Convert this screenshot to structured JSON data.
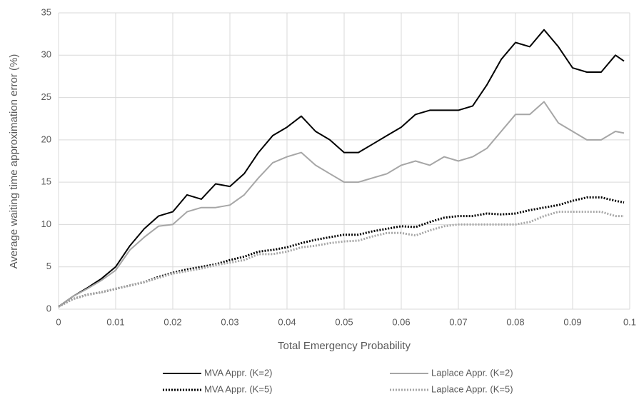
{
  "chart_data": {
    "type": "line",
    "x_label": "Total Emergency Probability",
    "y_label": "Average waiting time approximation error (%)",
    "x": [
      0,
      0.0025,
      0.005,
      0.0075,
      0.01,
      0.0125,
      0.015,
      0.0175,
      0.02,
      0.0225,
      0.025,
      0.0275,
      0.03,
      0.0325,
      0.035,
      0.0375,
      0.04,
      0.0425,
      0.045,
      0.0475,
      0.05,
      0.0525,
      0.055,
      0.0575,
      0.06,
      0.0625,
      0.065,
      0.0675,
      0.07,
      0.0725,
      0.075,
      0.0775,
      0.08,
      0.0825,
      0.085,
      0.0875,
      0.09,
      0.0925,
      0.095,
      0.0975,
      0.099
    ],
    "series": [
      {
        "name": "MVA Appr. (K=2)",
        "color": "#000000",
        "dash": "solid",
        "values": [
          0.3,
          1.5,
          2.5,
          3.6,
          5,
          7.5,
          9.5,
          11,
          11.5,
          13.5,
          13,
          14.8,
          14.5,
          16,
          18.5,
          20.5,
          21.5,
          22.8,
          21,
          20,
          18.5,
          18.5,
          19.5,
          20.5,
          21.5,
          23,
          23.5,
          23.5,
          23.5,
          24,
          26.5,
          29.5,
          31.5,
          31,
          33,
          31,
          28.5,
          28,
          28,
          30,
          29.3
        ]
      },
      {
        "name": "Laplace Appr. (K=2)",
        "color": "#a6a6a6",
        "dash": "solid",
        "values": [
          0.3,
          1.5,
          2.4,
          3.4,
          4.6,
          7,
          8.5,
          9.8,
          10,
          11.5,
          12,
          12,
          12.3,
          13.5,
          15.5,
          17.3,
          18,
          18.5,
          17,
          16,
          15,
          15,
          15.5,
          16,
          17,
          17.5,
          17,
          18,
          17.5,
          18,
          19,
          21,
          23,
          23,
          24.5,
          22,
          21,
          20,
          20,
          21,
          20.8
        ]
      },
      {
        "name": "MVA Appr. (K=5)",
        "color": "#000000",
        "dash": "dotted",
        "values": [
          0.3,
          1.2,
          1.7,
          2,
          2.4,
          2.8,
          3.2,
          3.8,
          4.3,
          4.7,
          5,
          5.3,
          5.8,
          6.2,
          6.8,
          7,
          7.3,
          7.8,
          8.2,
          8.5,
          8.8,
          8.8,
          9.2,
          9.5,
          9.8,
          9.7,
          10.3,
          10.8,
          11,
          11,
          11.3,
          11.2,
          11.3,
          11.7,
          12,
          12.3,
          12.8,
          13.2,
          13.2,
          12.8,
          12.6
        ]
      },
      {
        "name": "Laplace Appr. (K=5)",
        "color": "#a6a6a6",
        "dash": "dotted",
        "values": [
          0.3,
          1.2,
          1.7,
          2,
          2.4,
          2.8,
          3.2,
          3.7,
          4.2,
          4.5,
          4.8,
          5.2,
          5.5,
          5.8,
          6.5,
          6.5,
          6.8,
          7.3,
          7.5,
          7.8,
          8,
          8.1,
          8.6,
          9,
          9,
          8.7,
          9.3,
          9.8,
          10,
          10,
          10,
          10,
          10,
          10.3,
          11,
          11.5,
          11.5,
          11.5,
          11.5,
          11,
          11
        ]
      }
    ],
    "xlim": [
      0,
      0.1
    ],
    "xticks": [
      0,
      0.01,
      0.02,
      0.03,
      0.04,
      0.05,
      0.06,
      0.07,
      0.08,
      0.09,
      0.1
    ],
    "ylim": [
      0,
      35
    ],
    "yticks": [
      0,
      5,
      10,
      15,
      20,
      25,
      30,
      35
    ],
    "grid": true,
    "legend": "bottom"
  }
}
